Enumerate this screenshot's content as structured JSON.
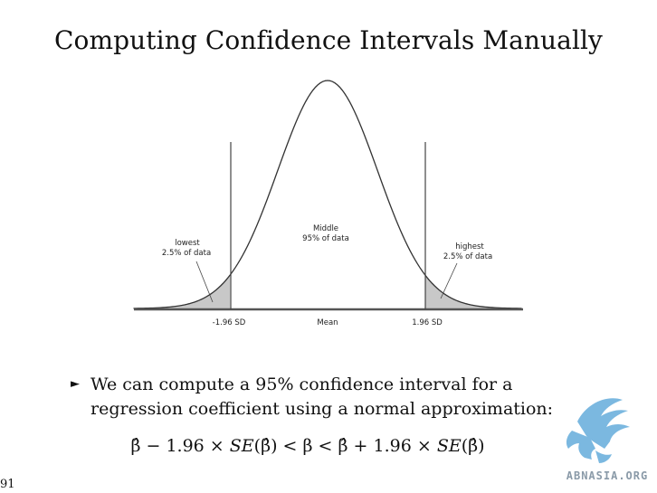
{
  "slide": {
    "title": "Computing Confidence Intervals Manually",
    "page_number": "91"
  },
  "figure": {
    "labels": {
      "lowest": "lowest",
      "lowest_sub": "2.5% of data",
      "middle": "Middle",
      "middle_sub": "95% of data",
      "highest": "highest",
      "highest_sub": "2.5% of data"
    },
    "ticks": {
      "left": "-1.96 SD",
      "center": "Mean",
      "right": "1.96 SD"
    },
    "colors": {
      "curve": "#333333",
      "tail_fill": "#c8c8c8"
    }
  },
  "bullet": {
    "marker": "►",
    "text": "We can compute a 95% confidence interval for a regression coefficient using a normal approximation:"
  },
  "formula": {
    "beta_hat": "β̂",
    "minus": "−",
    "plus": "+",
    "coef": "1.96",
    "times": "×",
    "se": "SE",
    "open_paren": "(",
    "close_paren": ")",
    "lt": "<",
    "beta": "β"
  },
  "logo": {
    "text": "ABNASIA.ORG",
    "color": "#7bb8e0"
  }
}
